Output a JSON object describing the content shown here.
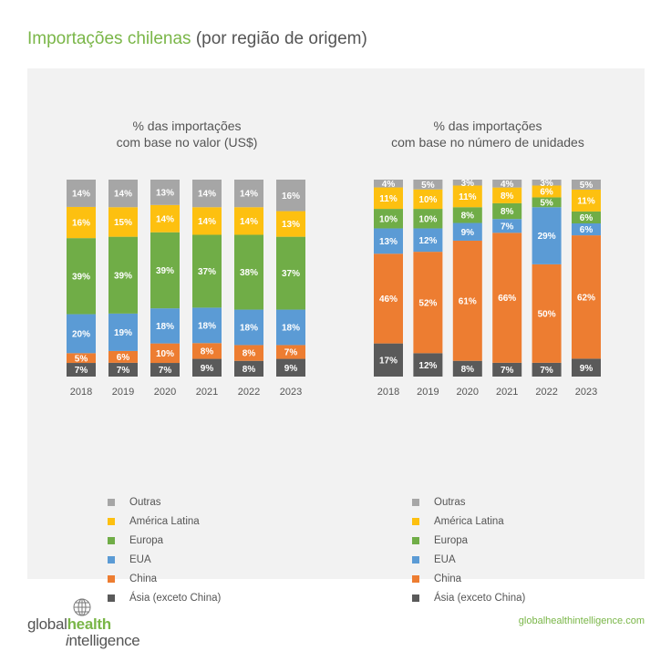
{
  "title": {
    "main": "Importações chilenas",
    "sub": "(por região de origem)"
  },
  "colors": {
    "Outras": "#a6a6a6",
    "America Latina": "#fdc010",
    "Europa": "#70ad47",
    "EUA": "#5b9bd5",
    "China": "#ed7d31",
    "Asia": "#5a5a5a"
  },
  "chart_data": [
    {
      "type": "bar",
      "stacked": true,
      "percent": true,
      "title_lines": [
        "% das importações",
        "com base no valor (US$)"
      ],
      "categories": [
        "2018",
        "2019",
        "2020",
        "2021",
        "2022",
        "2023"
      ],
      "series": [
        {
          "name": "Ásia (exceto China)",
          "values": [
            7,
            7,
            7,
            9,
            8,
            9
          ]
        },
        {
          "name": "China",
          "values": [
            5,
            6,
            10,
            8,
            8,
            7
          ]
        },
        {
          "name": "EUA",
          "values": [
            20,
            19,
            18,
            18,
            18,
            18
          ]
        },
        {
          "name": "Europa",
          "values": [
            39,
            39,
            39,
            37,
            38,
            37
          ]
        },
        {
          "name": "América Latina",
          "values": [
            16,
            15,
            14,
            14,
            14,
            13
          ]
        },
        {
          "name": "Outras",
          "values": [
            14,
            14,
            13,
            14,
            14,
            16
          ]
        }
      ],
      "legend": [
        "Outras",
        "América Latina",
        "Europa",
        "EUA",
        "China",
        "Ásia (exceto China)"
      ]
    },
    {
      "type": "bar",
      "stacked": true,
      "percent": true,
      "title_lines": [
        "% das importações",
        "com base no número de unidades"
      ],
      "categories": [
        "2018",
        "2019",
        "2020",
        "2021",
        "2022",
        "2023"
      ],
      "series": [
        {
          "name": "Ásia (exceto China)",
          "values": [
            17,
            12,
            8,
            7,
            7,
            9
          ]
        },
        {
          "name": "China",
          "values": [
            46,
            52,
            61,
            66,
            50,
            62
          ]
        },
        {
          "name": "EUA",
          "values": [
            13,
            12,
            9,
            7,
            29,
            6
          ]
        },
        {
          "name": "Europa",
          "values": [
            10,
            10,
            8,
            8,
            5,
            6
          ]
        },
        {
          "name": "América Latina",
          "values": [
            11,
            10,
            11,
            8,
            6,
            11
          ]
        },
        {
          "name": "Outras",
          "values": [
            4,
            5,
            3,
            4,
            3,
            5
          ]
        }
      ],
      "legend": [
        "Outras",
        "América Latina",
        "Europa",
        "EUA",
        "China",
        "Ásia (exceto China)"
      ]
    }
  ],
  "footer": {
    "logo_part1": "global",
    "logo_part2": "health",
    "logo_part3_i": "i",
    "logo_part3_rest": "ntelligence",
    "website": "globalhealthintelligence.com"
  }
}
